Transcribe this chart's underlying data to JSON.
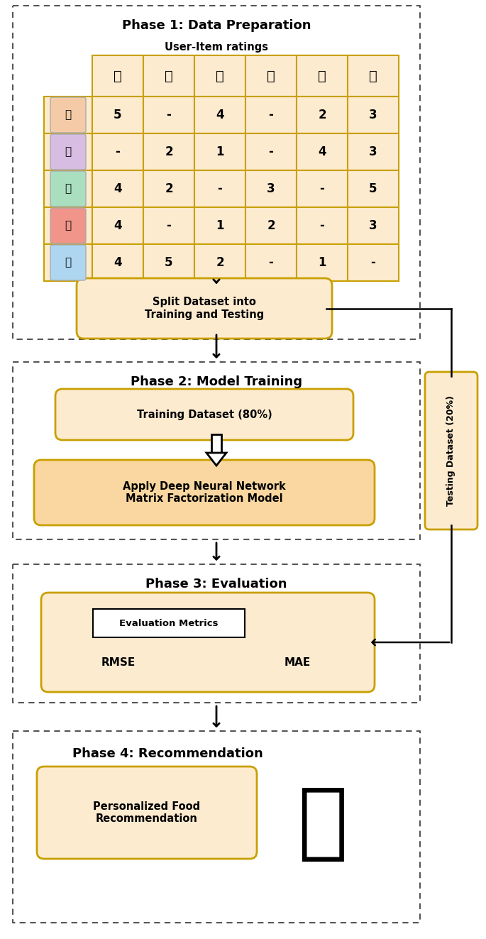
{
  "bg_color": "#ffffff",
  "box_fill_light": "#FDEBD0",
  "box_fill_orange": "#FAD7A0",
  "box_border_dark": "#C8A000",
  "table_cell_color": "#FDEBD0",
  "table_border_color": "#C8A000",
  "phase1_title": "Phase 1: Data Preparation",
  "phase2_title": "Phase 2: Model Training",
  "phase3_title": "Phase 3: Evaluation",
  "phase4_title": "Phase 4: Recommendation",
  "user_item_label": "User-Item ratings",
  "table_data": [
    [
      "5",
      "-",
      "4",
      "-",
      "2",
      "3"
    ],
    [
      "-",
      "2",
      "1",
      "-",
      "4",
      "3"
    ],
    [
      "4",
      "2",
      "-",
      "3",
      "-",
      "5"
    ],
    [
      "4",
      "-",
      "1",
      "2",
      "-",
      "3"
    ],
    [
      "4",
      "5",
      "2",
      "-",
      "1",
      "-"
    ]
  ],
  "split_box_text": "Split Dataset into\nTraining and Testing",
  "training_box_text": "Training Dataset (80%)",
  "dnn_box_text": "Apply Deep Neural Network\nMatrix Factorization Model",
  "eval_box_text": "Evaluation Metrics",
  "rmse_text": "RMSE",
  "mae_text": "MAE",
  "reco_box_text": "Personalized Food\nRecommendation",
  "testing_label": "Testing Dataset (20%)",
  "food_icons": [
    "☕",
    "🍲",
    "🌿",
    "🍲",
    "🌽",
    "🍛"
  ],
  "user_icons": [
    "👤",
    "👩",
    "👩",
    "👦",
    "👨"
  ]
}
